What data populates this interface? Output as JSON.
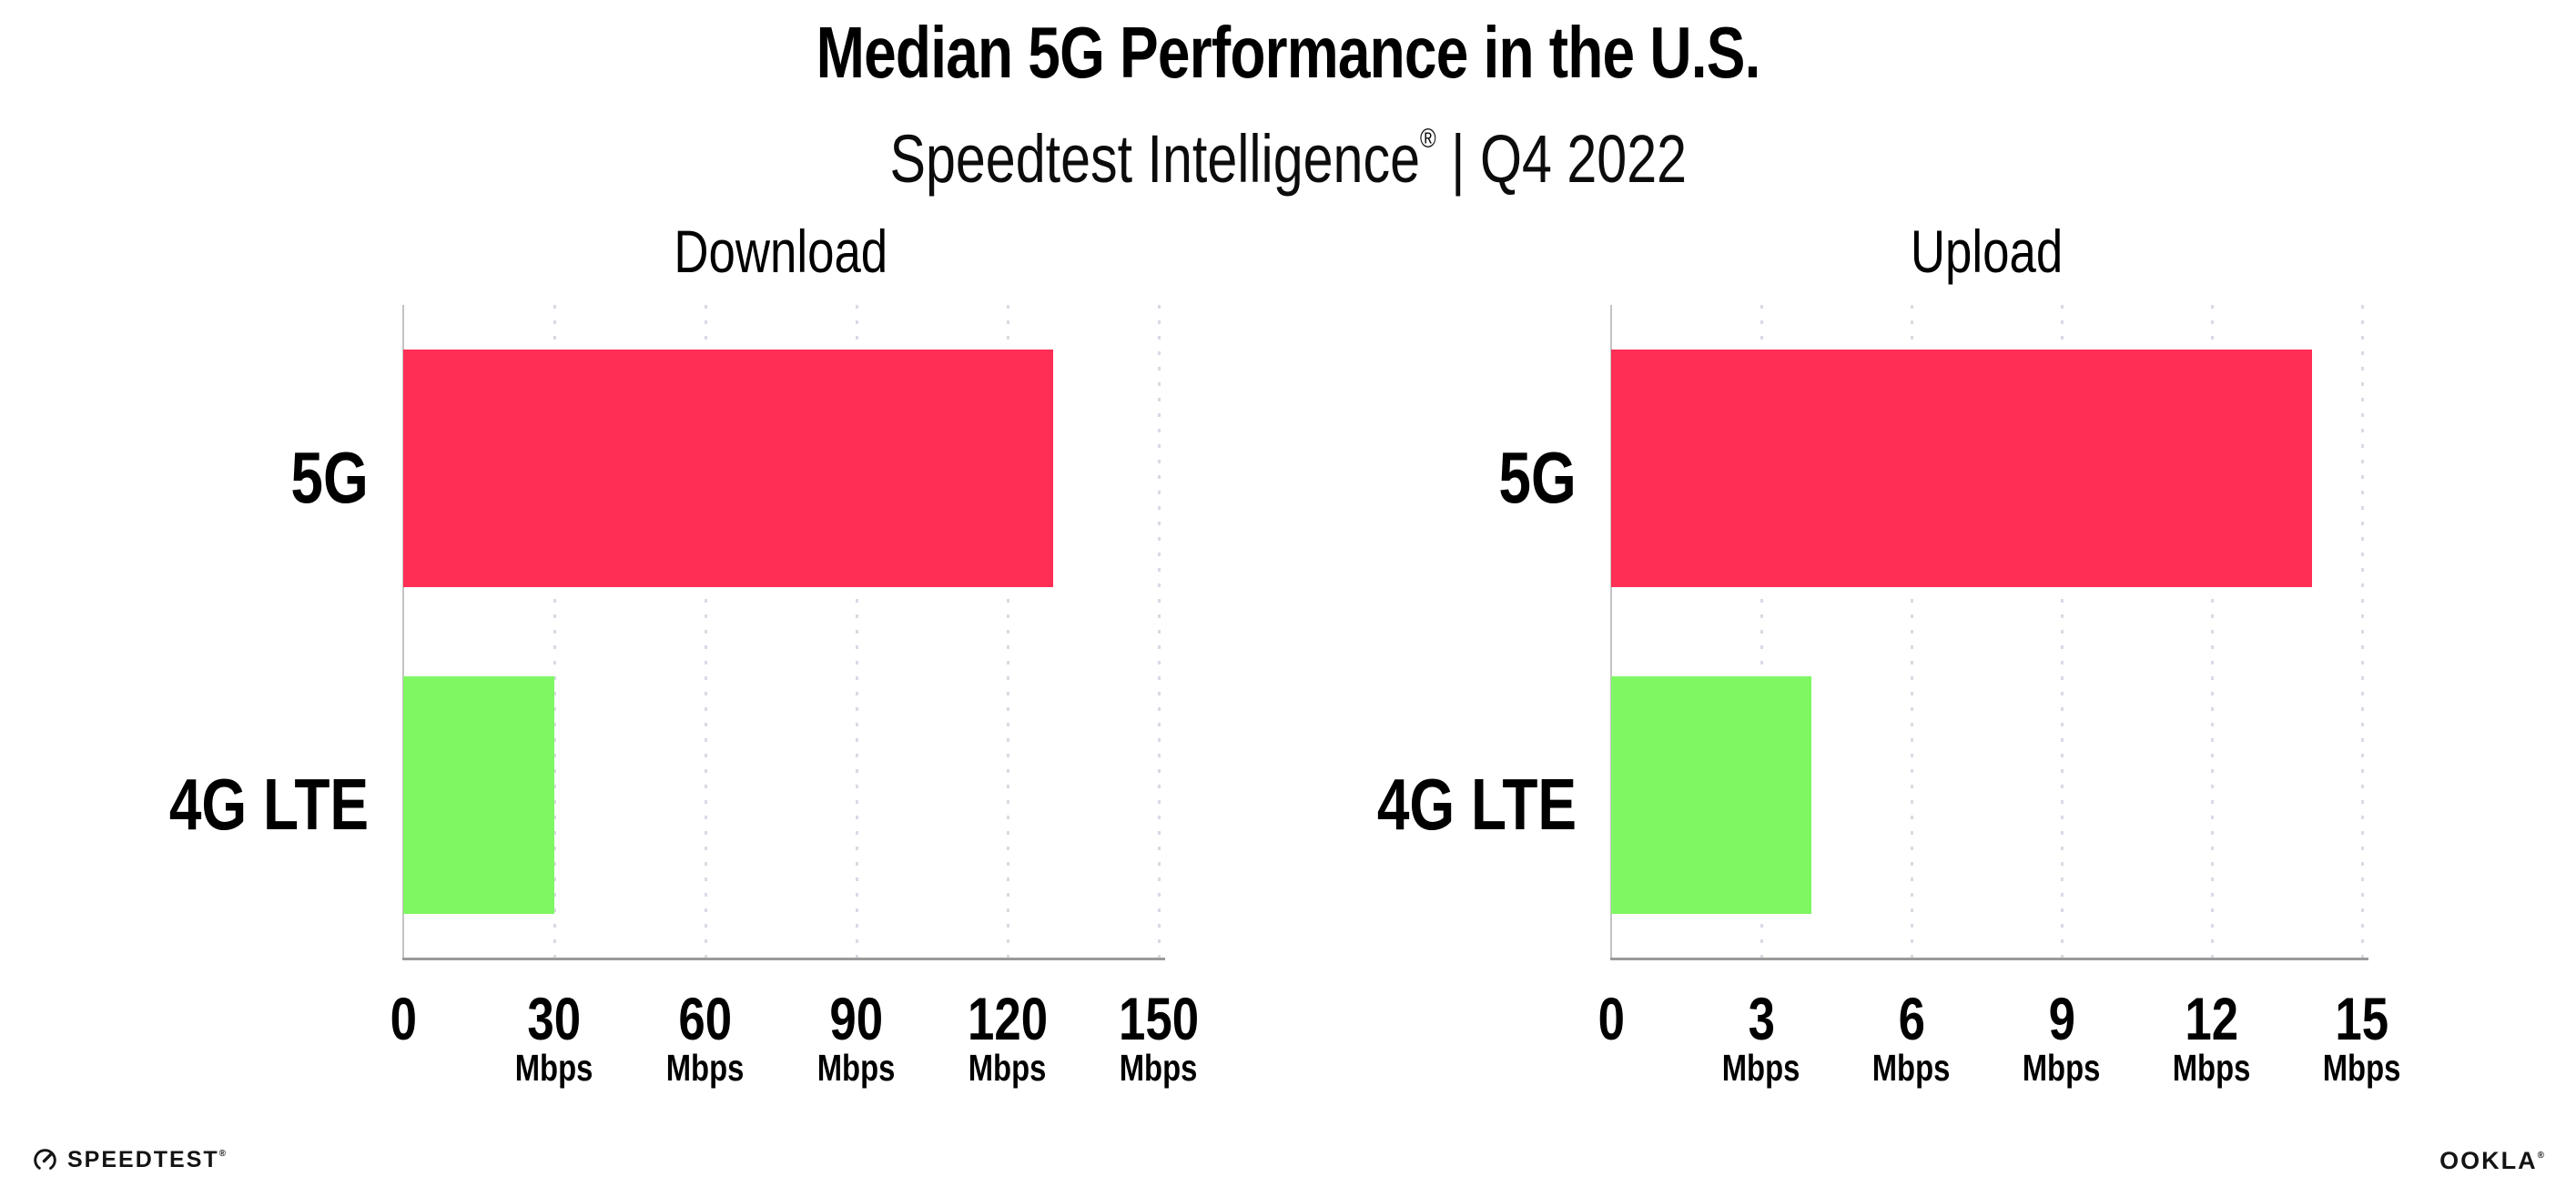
{
  "header": {
    "title": "Median 5G Performance in the U.S.",
    "subtitle_brand": "Speedtest Intelligence",
    "subtitle_reg": "®",
    "subtitle_rest": " | Q4 2022"
  },
  "footer": {
    "speedtest_label": "SPEEDTEST",
    "speedtest_mark": "®",
    "ookla_label": "OOKLA",
    "ookla_mark": "®"
  },
  "colors": {
    "bar_5g": "#ff2e55",
    "bar_4g_lte": "#7ef763",
    "x_axis": "#9a9a9a",
    "y_axis": "#c3c3c3",
    "gridline": "#d9dae4",
    "text": "#000000"
  },
  "chart_data": [
    {
      "type": "bar",
      "orientation": "horizontal",
      "title": "Download",
      "categories": [
        "5G",
        "4G LTE"
      ],
      "values": [
        129,
        30
      ],
      "unit": "Mbps",
      "xlim": [
        0,
        150
      ],
      "xticks": [
        0,
        30,
        60,
        90,
        120,
        150
      ],
      "tick_unit_label": "Mbps",
      "bar_colors": [
        "#ff2e55",
        "#7ef763"
      ],
      "grid": "dotted-vertical",
      "legend": "none"
    },
    {
      "type": "bar",
      "orientation": "horizontal",
      "title": "Upload",
      "categories": [
        "5G",
        "4G LTE"
      ],
      "values": [
        14,
        4
      ],
      "unit": "Mbps",
      "xlim": [
        0,
        15
      ],
      "xticks": [
        0,
        3,
        6,
        9,
        12,
        15
      ],
      "tick_unit_label": "Mbps",
      "bar_colors": [
        "#ff2e55",
        "#7ef763"
      ],
      "grid": "dotted-vertical",
      "legend": "none"
    }
  ]
}
